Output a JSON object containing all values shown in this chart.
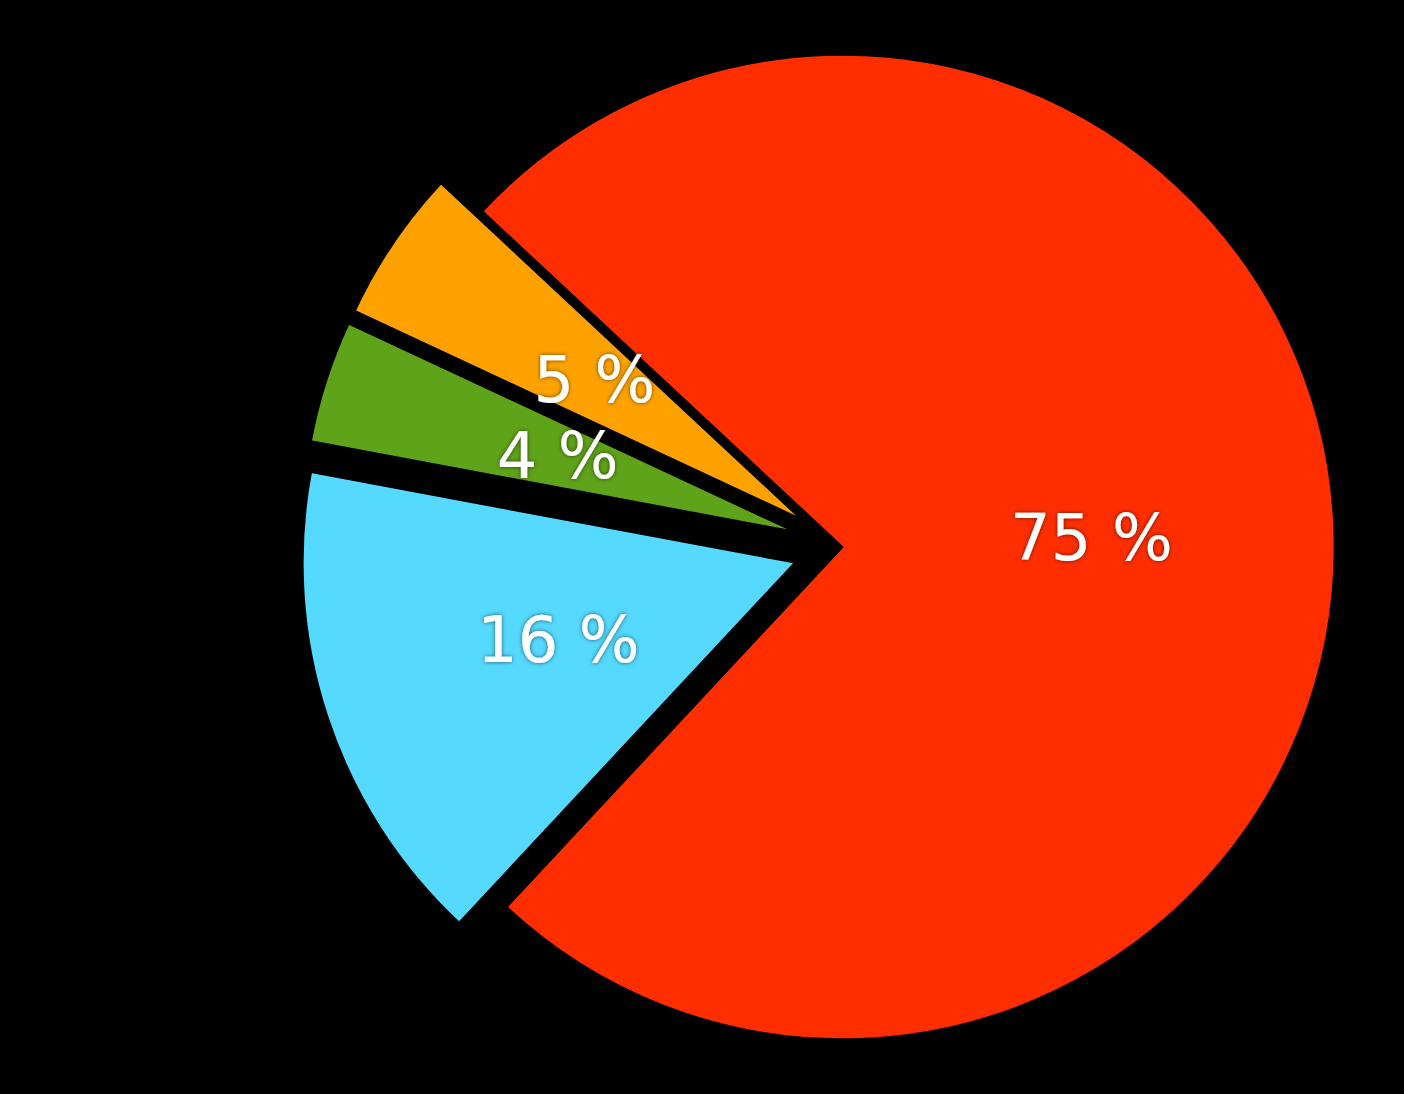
{
  "chart_data": {
    "type": "pie",
    "categories": [
      null,
      null,
      null,
      null
    ],
    "values": [
      75,
      16,
      4,
      5
    ],
    "colors": [
      "#ff2e00",
      "#55d9ff",
      "#5fa31a",
      "#ffa200"
    ],
    "value_labels": [
      "75 %",
      "16 %",
      "4 %",
      "5 %"
    ]
  }
}
